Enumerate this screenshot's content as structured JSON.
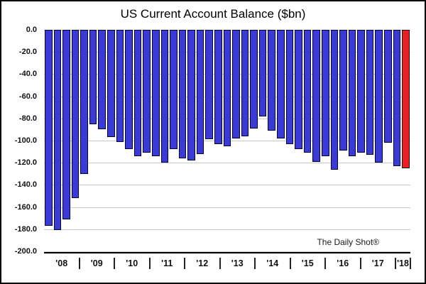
{
  "chart_data": {
    "type": "bar",
    "title": "US Current Account Balance ($bn)",
    "xlabel": "",
    "ylabel": "",
    "ylim": [
      -200,
      0
    ],
    "yticks": [
      "0.0",
      "-20.0",
      "-40.0",
      "-60.0",
      "-80.0",
      "-100.0",
      "-120.0",
      "-140.0",
      "-160.0",
      "-180.0",
      "-200.0"
    ],
    "x_unit": "quarter",
    "years": [
      {
        "label": "'08",
        "quarters": 4
      },
      {
        "label": "'09",
        "quarters": 4
      },
      {
        "label": "'10",
        "quarters": 4
      },
      {
        "label": "'11",
        "quarters": 4
      },
      {
        "label": "'12",
        "quarters": 4
      },
      {
        "label": "'13",
        "quarters": 4
      },
      {
        "label": "'14",
        "quarters": 4
      },
      {
        "label": "'15",
        "quarters": 4
      },
      {
        "label": "'16",
        "quarters": 4
      },
      {
        "label": "'17",
        "quarters": 4
      },
      {
        "label": "'18",
        "quarters": 1
      }
    ],
    "values": [
      -177,
      -181,
      -171,
      -152,
      -130,
      -85,
      -90,
      -97,
      -101,
      -108,
      -114,
      -111,
      -114,
      -120,
      -108,
      -116,
      -118,
      -112,
      -99,
      -103,
      -105,
      -98,
      -96,
      -89,
      -78,
      -91,
      -98,
      -103,
      -108,
      -111,
      -119,
      -114,
      -126,
      -109,
      -114,
      -111,
      -113,
      -120,
      -102,
      -123,
      -125
    ],
    "bar_color": "#3a3ad6",
    "bar_border": "#000033",
    "highlight_index": 40,
    "highlight_color": "#ee1c25",
    "highlight_border": "#111111",
    "annotation": "The Daily Shot®",
    "grid": true,
    "gridline_color": "#c8c8c8",
    "legend": "none"
  }
}
